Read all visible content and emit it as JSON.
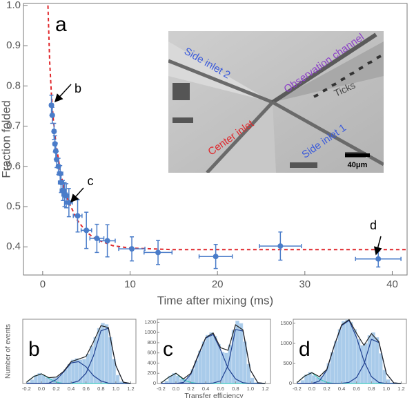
{
  "chart_data": [
    {
      "type": "scatter",
      "label": "a",
      "xlabel": "Time after mixing (ms)",
      "ylabel": "Fraction folded",
      "xlim": [
        -2.2,
        41.7
      ],
      "ylim": [
        0.33,
        1.005
      ],
      "xticks": [
        0,
        10,
        20,
        30,
        40
      ],
      "yticks": [
        0.4,
        0.5,
        0.6,
        0.7,
        0.8,
        0.9,
        {
          "value": 1,
          "label": "1.0"
        }
      ],
      "color": "#4a7cc9",
      "x": [
        1.0,
        1.1,
        1.3,
        1.4,
        1.5,
        1.6,
        1.8,
        2.0,
        2.1,
        2.3,
        2.5,
        2.7,
        3.0,
        4.0,
        5.0,
        6.2,
        7.4,
        10.2,
        13.2,
        19.8,
        27.2,
        38.4
      ],
      "values": [
        0.752,
        0.727,
        0.687,
        0.656,
        0.638,
        0.617,
        0.6,
        0.582,
        0.56,
        0.54,
        0.53,
        0.527,
        0.51,
        0.477,
        0.441,
        0.421,
        0.415,
        0.395,
        0.386,
        0.376,
        0.402,
        0.37
      ],
      "xerr": [
        0.2,
        0.2,
        0.2,
        0.2,
        0.2,
        0.2,
        0.2,
        0.3,
        0.3,
        0.3,
        0.3,
        0.3,
        0.4,
        0.5,
        0.6,
        0.8,
        0.9,
        1.5,
        1.6,
        1.9,
        2.4,
        2.6
      ],
      "yerr": [
        0.025,
        0.02,
        0.02,
        0.02,
        0.02,
        0.02,
        0.02,
        0.02,
        0.025,
        0.025,
        0.03,
        0.03,
        0.035,
        0.04,
        0.045,
        0.035,
        0.04,
        0.03,
        0.03,
        0.03,
        0.035,
        0.02
      ],
      "fit": {
        "color": "#e0262a",
        "x": [
          0.6,
          0.8,
          1,
          1.2,
          1.5,
          2,
          2.5,
          3,
          4,
          5,
          6,
          8,
          10,
          15,
          20,
          30,
          41.7
        ],
        "values": [
          1.0,
          0.86,
          0.78,
          0.72,
          0.66,
          0.59,
          0.54,
          0.51,
          0.465,
          0.437,
          0.42,
          0.403,
          0.397,
          0.393,
          0.393,
          0.393,
          0.393
        ]
      },
      "annotations": [
        "b",
        "c",
        "d"
      ],
      "inset": [
        "Side inlet 2",
        "Observation channel",
        "Ticks",
        "Center inlet",
        "Side inlet 1",
        "40μm"
      ]
    },
    {
      "type": "histogram",
      "label": "b",
      "ylabel": "Number of events",
      "xlim": [
        -0.25,
        1.27
      ],
      "ylim": [
        0,
        1000
      ],
      "xticks": [
        -0.2,
        {
          "value": 0,
          "label": "0.0"
        },
        0.2,
        0.4,
        0.6,
        0.8,
        {
          "value": 1,
          "label": "1.0"
        },
        1.2
      ],
      "bins": [
        -0.2,
        -0.15,
        -0.1,
        -0.05,
        0,
        0.05,
        0.1,
        0.15,
        0.2,
        0.25,
        0.3,
        0.35,
        0.4,
        0.45,
        0.5,
        0.55,
        0.6,
        0.65,
        0.7,
        0.75,
        0.8,
        0.85,
        0.9,
        0.95,
        1,
        1.05,
        1.1,
        1.15,
        1.2
      ],
      "values": [
        20,
        60,
        130,
        160,
        130,
        90,
        80,
        90,
        110,
        150,
        220,
        300,
        370,
        390,
        370,
        380,
        460,
        580,
        720,
        860,
        940,
        920,
        720,
        380,
        130,
        30,
        5,
        0
      ],
      "color": "#a9cbea",
      "curve_x": [
        -0.2,
        -0.1,
        0,
        0.1,
        0.2,
        0.3,
        0.4,
        0.5,
        0.6,
        0.7,
        0.8,
        0.9,
        1,
        1.1,
        1.2
      ],
      "curves": [
        {
          "color": "#3ec9c0",
          "values": [
            20,
            110,
            150,
            80,
            20,
            0,
            0,
            0,
            0,
            0,
            0,
            0,
            0,
            0,
            0
          ]
        },
        {
          "color": "#1f3f8f",
          "values": [
            0,
            0,
            0,
            5,
            60,
            180,
            320,
            340,
            260,
            120,
            40,
            5,
            0,
            0,
            0
          ]
        },
        {
          "color": "#1f3f8f",
          "values": [
            0,
            0,
            0,
            0,
            0,
            0,
            5,
            40,
            160,
            430,
            820,
            860,
            280,
            20,
            0
          ]
        },
        {
          "color": "#222222",
          "values": [
            20,
            110,
            150,
            90,
            100,
            190,
            340,
            380,
            420,
            650,
            900,
            870,
            280,
            20,
            0
          ]
        }
      ]
    },
    {
      "type": "histogram",
      "label": "c",
      "xlabel": "Transfer efficiency",
      "xlim": [
        -0.25,
        1.27
      ],
      "ylim": [
        0,
        1260
      ],
      "xticks": [
        -0.2,
        {
          "value": 0,
          "label": "0.0"
        },
        0.2,
        0.4,
        0.6,
        0.8,
        {
          "value": 1,
          "label": "1.0"
        },
        1.2
      ],
      "yticks": [
        0,
        200,
        400,
        600,
        800,
        1000,
        1200
      ],
      "bins": [
        -0.2,
        -0.15,
        -0.1,
        -0.05,
        0,
        0.05,
        0.1,
        0.15,
        0.2,
        0.25,
        0.3,
        0.35,
        0.4,
        0.45,
        0.5,
        0.55,
        0.6,
        0.65,
        0.7,
        0.75,
        0.8,
        0.85,
        0.9,
        0.95,
        1,
        1.05,
        1.1,
        1.15,
        1.2
      ],
      "values": [
        10,
        50,
        150,
        200,
        150,
        90,
        90,
        150,
        280,
        450,
        640,
        820,
        950,
        1000,
        930,
        770,
        620,
        600,
        760,
        1050,
        1230,
        1180,
        820,
        380,
        110,
        20,
        5,
        0
      ],
      "color": "#a9cbea",
      "curve_x": [
        -0.2,
        -0.1,
        0,
        0.1,
        0.2,
        0.3,
        0.4,
        0.5,
        0.6,
        0.7,
        0.8,
        0.9,
        1,
        1.1,
        1.2
      ],
      "curves": [
        {
          "color": "#3ec9c0",
          "values": [
            10,
            120,
            200,
            70,
            20,
            0,
            0,
            0,
            0,
            0,
            0,
            0,
            0,
            0,
            0
          ]
        },
        {
          "color": "#1f3f8f",
          "values": [
            0,
            0,
            0,
            20,
            180,
            540,
            890,
            960,
            660,
            300,
            90,
            15,
            0,
            0,
            0
          ]
        },
        {
          "color": "#1f3f8f",
          "values": [
            0,
            0,
            0,
            0,
            0,
            0,
            0,
            10,
            50,
            350,
            1060,
            1030,
            260,
            15,
            0
          ]
        },
        {
          "color": "#222222",
          "values": [
            10,
            120,
            200,
            90,
            200,
            560,
            900,
            990,
            700,
            650,
            1150,
            1050,
            260,
            15,
            0
          ]
        }
      ]
    },
    {
      "type": "histogram",
      "label": "d",
      "xlim": [
        -0.25,
        1.27
      ],
      "ylim": [
        0,
        1600
      ],
      "xticks": [
        -0.2,
        {
          "value": 0,
          "label": "0.0"
        },
        0.2,
        0.4,
        0.6,
        0.8,
        {
          "value": 1,
          "label": "1.0"
        },
        1.2
      ],
      "yticks": [
        0,
        500,
        1000,
        1500
      ],
      "bins": [
        -0.2,
        -0.15,
        -0.1,
        -0.05,
        0,
        0.05,
        0.1,
        0.15,
        0.2,
        0.25,
        0.3,
        0.35,
        0.4,
        0.45,
        0.5,
        0.55,
        0.6,
        0.65,
        0.7,
        0.75,
        0.8,
        0.85,
        0.9,
        0.95,
        1,
        1.05,
        1.1,
        1.15,
        1.2
      ],
      "values": [
        20,
        80,
        220,
        280,
        200,
        150,
        180,
        300,
        500,
        780,
        1050,
        1350,
        1550,
        1590,
        1530,
        1350,
        1100,
        950,
        1000,
        1200,
        1270,
        1150,
        750,
        340,
        100,
        20,
        5,
        0
      ],
      "color": "#a9cbea",
      "curve_x": [
        -0.2,
        -0.1,
        0,
        0.1,
        0.2,
        0.3,
        0.4,
        0.5,
        0.6,
        0.7,
        0.8,
        0.9,
        1,
        1.1,
        1.2
      ],
      "curves": [
        {
          "color": "#3ec9c0",
          "values": [
            20,
            180,
            270,
            110,
            25,
            0,
            0,
            0,
            0,
            0,
            0,
            0,
            0,
            0,
            0
          ]
        },
        {
          "color": "#1f3f8f",
          "values": [
            0,
            0,
            0,
            60,
            330,
            930,
            1440,
            1570,
            1150,
            560,
            170,
            25,
            0,
            0,
            0
          ]
        },
        {
          "color": "#1f3f8f",
          "values": [
            0,
            0,
            0,
            0,
            0,
            0,
            5,
            30,
            150,
            480,
            1100,
            1020,
            250,
            15,
            0
          ]
        },
        {
          "color": "#222222",
          "values": [
            20,
            180,
            270,
            170,
            350,
            940,
            1460,
            1590,
            1250,
            950,
            1240,
            1040,
            250,
            15,
            0
          ]
        }
      ]
    }
  ]
}
